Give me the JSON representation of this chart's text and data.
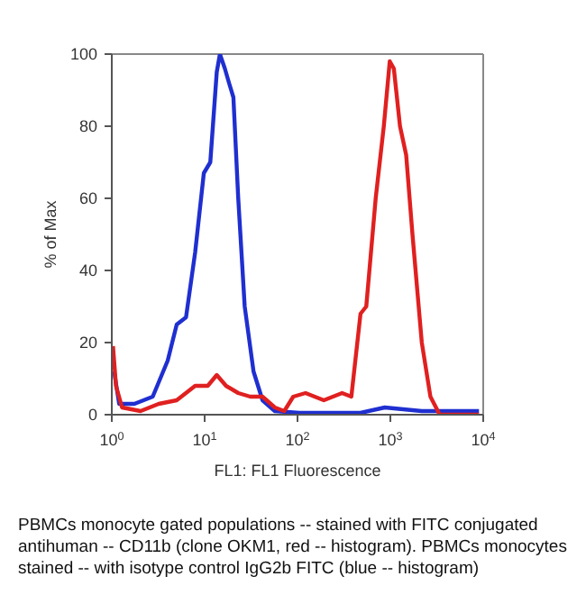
{
  "chart_data": {
    "type": "line",
    "xlabel": "FL1: FL1 Fluorescence",
    "ylabel": "% of Max",
    "log": "x",
    "xlim": [
      1,
      10000
    ],
    "ylim": [
      0,
      100
    ],
    "xticks": [
      {
        "value": 1,
        "label": "10$^{0}$"
      },
      {
        "value": 10,
        "label": "10$^{1}$"
      },
      {
        "value": 100,
        "label": "10$^{2}$"
      },
      {
        "value": 1000,
        "label": "10$^{3}$"
      },
      {
        "value": 10000,
        "label": "10$^{4}$"
      }
    ],
    "yticks": [
      0,
      20,
      40,
      60,
      80,
      100
    ],
    "grid": false,
    "legend": false,
    "marker": "none",
    "line_style": "solid",
    "series": [
      {
        "color": "#1f2fd0",
        "x": [
          1.06,
          1.2,
          1.75,
          2.76,
          4.0,
          5.0,
          6.3,
          7.9,
          9.8,
          11.5,
          13.5,
          14.6,
          16.5,
          18.3,
          20.4,
          23,
          27,
          33.6,
          42,
          57,
          105,
          477,
          870,
          2180,
          9000
        ],
        "values": [
          12,
          3,
          3,
          5,
          15,
          25,
          27,
          45,
          67,
          70,
          95,
          100,
          96,
          92,
          88,
          60,
          30,
          12,
          4,
          1,
          0.5,
          0.5,
          2,
          1,
          1
        ]
      },
      {
        "color": "#e02020",
        "x": [
          1.03,
          1.11,
          1.29,
          2.04,
          3.2,
          5.0,
          7.9,
          10.8,
          13.5,
          17,
          23,
          31,
          42,
          57,
          72,
          90,
          122,
          192,
          302,
          380,
          477,
          550,
          695,
          850,
          985,
          1090,
          1270,
          1480,
          1730,
          2180,
          2700,
          3400,
          9000
        ],
        "values": [
          19,
          8,
          2,
          1,
          3,
          4,
          8,
          8,
          11,
          8,
          6,
          5,
          5,
          2,
          1,
          5,
          6,
          4,
          6,
          5,
          28,
          30,
          60,
          80,
          98,
          96,
          80,
          72,
          50,
          20,
          5,
          0,
          0
        ]
      }
    ],
    "annotations": [
      "PBMCs monocyte gated populations -- stained with FITC conjugated antihuman -- CD11b (clone OKM1, red -- histogram). PBMCs monocytes stained -- with isotype control IgG2b FITC (blue -- histogram)"
    ]
  }
}
